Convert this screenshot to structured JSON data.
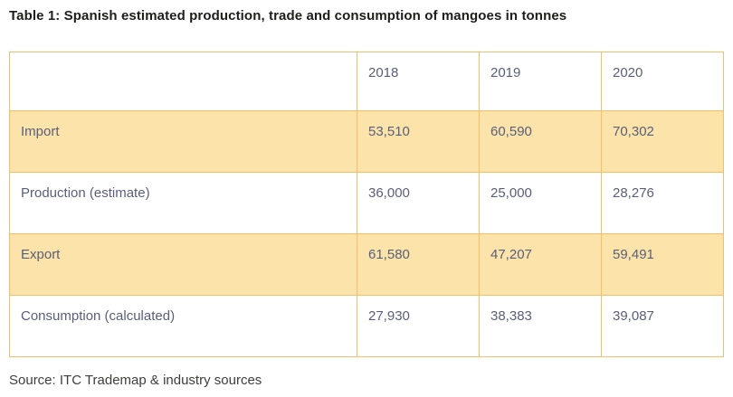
{
  "title": "Table 1: Spanish estimated production, trade and consumption of mangoes in tonnes",
  "source": "Source: ITC Trademap & industry sources",
  "colors": {
    "table_border": "#f8bd69",
    "row_highlight_background": "#fce3aa",
    "table_text": "#5a5f79",
    "title_text": "#1d1d1b",
    "source_text": "#3e3e3c"
  },
  "table": {
    "columns": [
      "",
      "2018",
      "2019",
      "2020"
    ],
    "rows": [
      {
        "label": "Import",
        "values": [
          "53,510",
          "60,590",
          "70,302"
        ],
        "highlighted": true
      },
      {
        "label": "Production (estimate)",
        "values": [
          "36,000",
          "25,000",
          "28,276"
        ],
        "highlighted": false
      },
      {
        "label": "Export",
        "values": [
          "61,580",
          "47,207",
          "59,491"
        ],
        "highlighted": true
      },
      {
        "label": "Consumption (calculated)",
        "values": [
          "27,930",
          "38,383",
          "39,087"
        ],
        "highlighted": false
      }
    ]
  },
  "chart_data": {
    "type": "table",
    "title": "Table 1: Spanish estimated production, trade and consumption of mangoes in tonnes",
    "categories": [
      "2018",
      "2019",
      "2020"
    ],
    "series": [
      {
        "name": "Import",
        "values": [
          53510,
          60590,
          70302
        ]
      },
      {
        "name": "Production (estimate)",
        "values": [
          36000,
          25000,
          28276
        ]
      },
      {
        "name": "Export",
        "values": [
          61580,
          47207,
          59491
        ]
      },
      {
        "name": "Consumption (calculated)",
        "values": [
          27930,
          38383,
          39087
        ]
      }
    ],
    "unit": "tonnes",
    "source": "Source: ITC Trademap & industry sources",
    "layout": {
      "highlighted_rows": [
        "Import",
        "Export"
      ],
      "grid": true,
      "legend_position": "none"
    }
  }
}
